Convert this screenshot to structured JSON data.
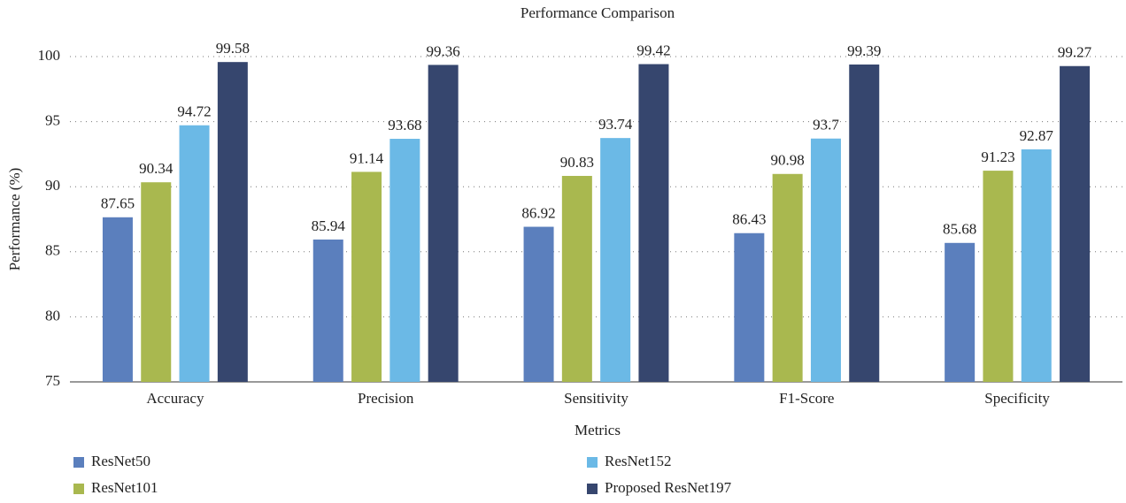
{
  "chart_data": {
    "type": "bar",
    "title": "Performance Comparison",
    "x_label": "Metrics",
    "y_label": "Performance (%)",
    "categories": [
      "Accuracy",
      "Precision",
      "Sensitivity",
      "F1-Score",
      "Specificity"
    ],
    "series": [
      {
        "name": "ResNet50",
        "color": "#5b7fbd",
        "values": [
          87.65,
          85.94,
          86.92,
          86.43,
          85.68
        ]
      },
      {
        "name": "ResNet101",
        "color": "#a9b84f",
        "values": [
          90.34,
          91.14,
          90.83,
          90.98,
          91.23
        ]
      },
      {
        "name": "ResNet152",
        "color": "#6bb9e6",
        "values": [
          94.72,
          93.68,
          93.74,
          93.7,
          92.87
        ]
      },
      {
        "name": "Proposed ResNet197",
        "color": "#36466e",
        "values": [
          99.58,
          99.36,
          99.42,
          99.39,
          99.27
        ]
      }
    ],
    "ylim": [
      75,
      100
    ],
    "yticks": [
      75,
      80,
      85,
      90,
      95,
      100
    ],
    "grid": true
  }
}
